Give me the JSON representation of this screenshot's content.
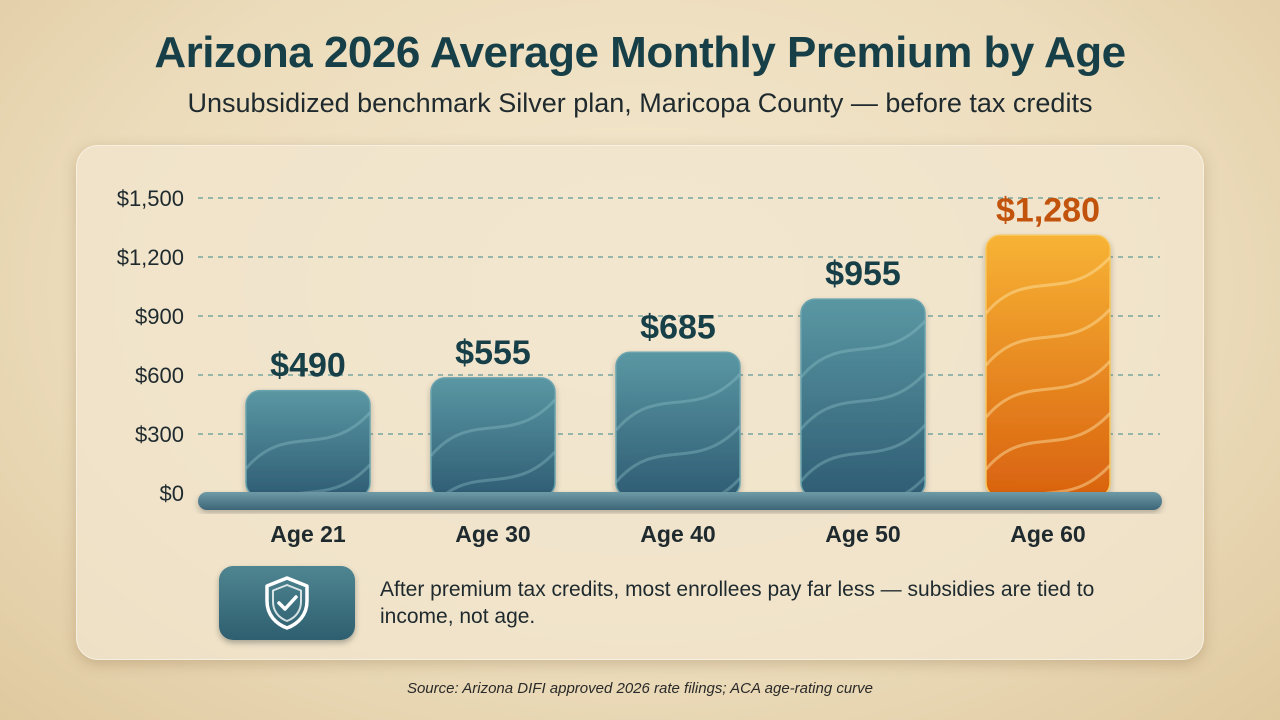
{
  "header": {
    "title": "Arizona 2026 Average Monthly Premium by Age",
    "subtitle": "Unsubsidized benchmark Silver plan, Maricopa County — before tax credits"
  },
  "chart_data": {
    "type": "bar",
    "title": "Arizona 2026 Average Monthly Premium by Age",
    "subtitle": "Unsubsidized benchmark Silver plan, Maricopa County — before tax credits",
    "categories": [
      "Age 21",
      "Age 30",
      "Age 40",
      "Age 50",
      "Age 60"
    ],
    "values": [
      490,
      555,
      685,
      955,
      1280
    ],
    "value_labels": [
      "$490",
      "$555",
      "$685",
      "$955",
      "$1,280"
    ],
    "y_ticks": [
      0,
      300,
      600,
      900,
      1200,
      1500
    ],
    "y_tick_labels": [
      "$0",
      "$300",
      "$600",
      "$900",
      "$1,200",
      "$1,500"
    ],
    "ylim": [
      0,
      1500
    ],
    "grid": true,
    "highlight_index": 4,
    "colors": {
      "bar": "#3a6f80",
      "bar_top": "#5a97a3",
      "highlight": "#e0781a",
      "highlight_top": "#f7b335",
      "value_label": "#173f48",
      "highlight_label": "#c2530d",
      "grid": "#5f9a97"
    }
  },
  "note": {
    "icon": "shield-check-icon",
    "text": "After premium tax credits, most enrollees pay far less — subsidies are tied to income, not age."
  },
  "source": "Source: Arizona DIFI approved 2026 rate filings; ACA age-rating curve"
}
